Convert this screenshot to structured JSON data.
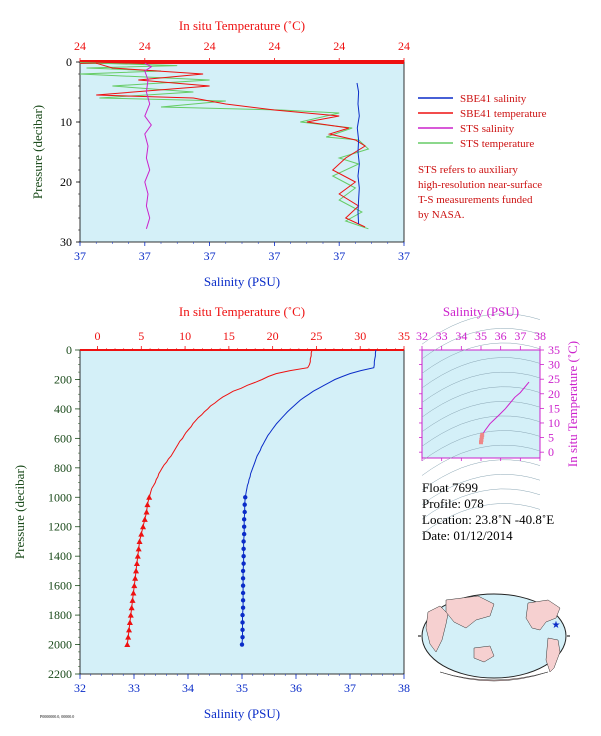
{
  "colors": {
    "plot_bg": "#d4f0f8",
    "temperature": "#ee1111",
    "salinity": "#0a2cc8",
    "sts_salinity": "#cc22cc",
    "sts_temperature": "#66cc66",
    "pressure_axis": "#1a4a1a",
    "ts_accent": "#cc22cc"
  },
  "chart_data": [
    {
      "id": "near_surface",
      "type": "line",
      "top_axis_label": "In situ Temperature (˚C)",
      "bottom_axis_label": "Salinity (PSU)",
      "left_axis_label": "Pressure (decibar)",
      "top_ticks": [
        "24",
        "24",
        "24",
        "24",
        "24",
        "24"
      ],
      "bottom_ticks": [
        "37",
        "37",
        "37",
        "37",
        "37",
        "37"
      ],
      "y_ticks": [
        "0",
        "10",
        "20",
        "30"
      ],
      "ylim": [
        0,
        30
      ],
      "xlim": [
        0,
        1
      ],
      "legend_position": "right",
      "legend": [
        {
          "label": "SBE41 salinity",
          "color": "#0a2cc8"
        },
        {
          "label": "SBE41 temperature",
          "color": "#ee1111"
        },
        {
          "label": "STS salinity",
          "color": "#cc22cc"
        },
        {
          "label": "STS temperature",
          "color": "#66cc66"
        }
      ],
      "note": [
        "STS refers to auxiliary",
        "high-resolution near-surface",
        "T-S measurements funded",
        "by NASA."
      ],
      "series": [
        {
          "name": "SBE41 salinity",
          "color": "#0a2cc8",
          "points": [
            [
              0.855,
              3.5
            ],
            [
              0.86,
              5
            ],
            [
              0.858,
              7
            ],
            [
              0.862,
              9
            ],
            [
              0.856,
              11
            ],
            [
              0.86,
              13
            ],
            [
              0.858,
              15
            ],
            [
              0.862,
              17
            ],
            [
              0.858,
              19
            ],
            [
              0.862,
              21
            ],
            [
              0.86,
              23
            ],
            [
              0.858,
              25
            ],
            [
              0.86,
              27
            ]
          ]
        },
        {
          "name": "SBE41 temperature",
          "color": "#ee1111",
          "points": [
            [
              0.05,
              0.2
            ],
            [
              0.1,
              1
            ],
            [
              0.38,
              2
            ],
            [
              0.18,
              3
            ],
            [
              0.4,
              4
            ],
            [
              0.05,
              5.5
            ],
            [
              0.35,
              6
            ],
            [
              0.45,
              7
            ],
            [
              0.6,
              8
            ],
            [
              0.8,
              9
            ],
            [
              0.7,
              10
            ],
            [
              0.83,
              11
            ],
            [
              0.77,
              12
            ],
            [
              0.85,
              13
            ],
            [
              0.88,
              14
            ],
            [
              0.82,
              16
            ],
            [
              0.78,
              18
            ],
            [
              0.85,
              20
            ],
            [
              0.8,
              22
            ],
            [
              0.86,
              24
            ],
            [
              0.82,
              26
            ],
            [
              0.88,
              27.5
            ]
          ]
        },
        {
          "name": "STS salinity",
          "color": "#cc22cc",
          "points": [
            [
              0.2,
              0.2
            ],
            [
              0.22,
              0.8
            ],
            [
              0.2,
              1.5
            ],
            [
              0.21,
              3
            ],
            [
              0.205,
              5
            ],
            [
              0.215,
              7
            ],
            [
              0.2,
              9
            ],
            [
              0.22,
              10.5
            ],
            [
              0.2,
              12
            ],
            [
              0.21,
              14
            ],
            [
              0.205,
              16
            ],
            [
              0.215,
              18
            ],
            [
              0.2,
              20
            ],
            [
              0.21,
              22
            ],
            [
              0.205,
              24
            ],
            [
              0.215,
              26
            ],
            [
              0.205,
              27.8
            ]
          ]
        },
        {
          "name": "STS temperature",
          "color": "#66cc66",
          "points": [
            [
              0.0,
              0.1
            ],
            [
              0.3,
              0.6
            ],
            [
              0.02,
              1
            ],
            [
              0.25,
              1.5
            ],
            [
              0.0,
              2
            ],
            [
              0.4,
              3
            ],
            [
              0.1,
              4
            ],
            [
              0.35,
              5
            ],
            [
              0.06,
              6
            ],
            [
              0.45,
              6.5
            ],
            [
              0.25,
              7.5
            ],
            [
              0.62,
              8
            ],
            [
              0.8,
              8.5
            ],
            [
              0.68,
              10
            ],
            [
              0.84,
              11
            ],
            [
              0.76,
              12.5
            ],
            [
              0.86,
              13
            ],
            [
              0.89,
              14.5
            ],
            [
              0.8,
              16
            ],
            [
              0.86,
              17
            ],
            [
              0.78,
              19
            ],
            [
              0.85,
              21
            ],
            [
              0.8,
              23
            ],
            [
              0.87,
              25
            ],
            [
              0.82,
              26.5
            ],
            [
              0.89,
              27.8
            ]
          ]
        }
      ]
    },
    {
      "id": "profile",
      "type": "line",
      "top_axis_label": "In situ Temperature (˚C)",
      "bottom_axis_label": "Salinity (PSU)",
      "left_axis_label": "Pressure (decibar)",
      "top_ticks": [
        "0",
        "5",
        "10",
        "15",
        "20",
        "25",
        "30",
        "35"
      ],
      "top_tick_values": [
        0,
        5,
        10,
        15,
        20,
        25,
        30,
        35
      ],
      "bottom_ticks": [
        "32",
        "33",
        "34",
        "35",
        "36",
        "37",
        "38"
      ],
      "bottom_tick_values": [
        32,
        33,
        34,
        35,
        36,
        37,
        38
      ],
      "y_ticks": [
        "0",
        "200",
        "400",
        "600",
        "800",
        "1000",
        "1200",
        "1400",
        "1600",
        "1800",
        "2000",
        "2200"
      ],
      "y_tick_values": [
        0,
        200,
        400,
        600,
        800,
        1000,
        1200,
        1400,
        1600,
        1800,
        2000,
        2200
      ],
      "temperature_xlim": [
        -2,
        35
      ],
      "salinity_xlim": [
        32,
        38
      ],
      "ylim": [
        2200,
        0
      ],
      "temperature": {
        "name": "Temperature",
        "pressure": [
          0,
          20,
          40,
          60,
          80,
          100,
          120,
          140,
          160,
          180,
          200,
          220,
          240,
          260,
          280,
          300,
          320,
          340,
          360,
          380,
          400,
          420,
          440,
          460,
          480,
          500,
          520,
          540,
          560,
          580,
          600,
          620,
          640,
          660,
          680,
          700,
          720,
          740,
          760,
          780,
          800,
          820,
          840,
          860,
          880,
          900,
          920,
          940,
          960,
          980,
          1000,
          1050,
          1100,
          1150,
          1200,
          1250,
          1300,
          1350,
          1400,
          1450,
          1500,
          1550,
          1600,
          1650,
          1700,
          1750,
          1800,
          1850,
          1900,
          1950,
          2000
        ],
        "values": [
          24.5,
          24.4,
          24.4,
          24.3,
          24.3,
          24.2,
          24.0,
          22.0,
          20.4,
          19.5,
          18.8,
          18.0,
          17.1,
          16.4,
          15.5,
          14.9,
          14.3,
          13.8,
          13.4,
          12.9,
          12.6,
          12.2,
          11.9,
          11.5,
          11.2,
          10.9,
          10.7,
          10.4,
          10.1,
          9.9,
          9.7,
          9.4,
          9.2,
          9.0,
          8.8,
          8.6,
          8.4,
          8.1,
          7.9,
          7.6,
          7.4,
          7.2,
          7.0,
          6.9,
          6.7,
          6.6,
          6.4,
          6.2,
          6.1,
          6.0,
          5.9,
          5.7,
          5.6,
          5.4,
          5.2,
          5.0,
          4.8,
          4.7,
          4.6,
          4.5,
          4.4,
          4.3,
          4.2,
          4.1,
          4.0,
          3.9,
          3.8,
          3.7,
          3.6,
          3.5,
          3.4
        ],
        "markers_pressure": [
          1000,
          1050,
          1100,
          1150,
          1200,
          1250,
          1300,
          1350,
          1400,
          1450,
          1500,
          1550,
          1600,
          1650,
          1700,
          1750,
          1800,
          1850,
          1900,
          1950,
          2000
        ],
        "markers_values": [
          5.9,
          5.7,
          5.6,
          5.4,
          5.2,
          5.0,
          4.8,
          4.7,
          4.6,
          4.5,
          4.4,
          4.3,
          4.2,
          4.1,
          4.0,
          3.9,
          3.8,
          3.7,
          3.6,
          3.5,
          3.4
        ]
      },
      "salinity": {
        "name": "Salinity",
        "pressure": [
          0,
          20,
          40,
          60,
          80,
          100,
          120,
          140,
          160,
          180,
          200,
          220,
          240,
          260,
          280,
          300,
          320,
          340,
          360,
          380,
          400,
          420,
          440,
          460,
          480,
          500,
          520,
          540,
          560,
          580,
          600,
          620,
          640,
          660,
          680,
          700,
          720,
          740,
          760,
          780,
          800,
          820,
          840,
          860,
          880,
          900,
          920,
          940,
          960,
          980,
          1000,
          1050,
          1100,
          1150,
          1200,
          1250,
          1300,
          1350,
          1400,
          1450,
          1500,
          1550,
          1600,
          1650,
          1700,
          1750,
          1800,
          1850,
          1900,
          1950,
          2000
        ],
        "values": [
          37.48,
          37.47,
          37.47,
          37.46,
          37.45,
          37.45,
          37.44,
          37.2,
          37.0,
          36.86,
          36.72,
          36.62,
          36.52,
          36.42,
          36.32,
          36.24,
          36.16,
          36.08,
          36.02,
          35.96,
          35.9,
          35.84,
          35.79,
          35.74,
          35.69,
          35.64,
          35.6,
          35.56,
          35.52,
          35.48,
          35.45,
          35.42,
          35.39,
          35.36,
          35.34,
          35.31,
          35.28,
          35.26,
          35.24,
          35.22,
          35.2,
          35.18,
          35.16,
          35.15,
          35.13,
          35.12,
          35.1,
          35.09,
          35.08,
          35.07,
          35.06,
          35.05,
          35.05,
          35.04,
          35.04,
          35.04,
          35.03,
          35.03,
          35.03,
          35.03,
          35.02,
          35.02,
          35.02,
          35.02,
          35.02,
          35.02,
          35.01,
          35.01,
          35.01,
          35.01,
          35.0
        ],
        "markers_pressure": [
          1000,
          1050,
          1100,
          1150,
          1200,
          1250,
          1300,
          1350,
          1400,
          1450,
          1500,
          1550,
          1600,
          1650,
          1700,
          1750,
          1800,
          1850,
          1900,
          1950,
          2000
        ],
        "markers_values": [
          35.06,
          35.05,
          35.05,
          35.04,
          35.04,
          35.04,
          35.03,
          35.03,
          35.03,
          35.03,
          35.02,
          35.02,
          35.02,
          35.02,
          35.02,
          35.02,
          35.01,
          35.01,
          35.01,
          35.01,
          35.0
        ]
      }
    },
    {
      "id": "ts_diagram",
      "type": "scatter",
      "top_axis_label": "Salinity (PSU)",
      "right_axis_label": "In situ Temperature (˚C)",
      "x_ticks": [
        "32",
        "33",
        "34",
        "35",
        "36",
        "37",
        "38"
      ],
      "x_tick_values": [
        32,
        33,
        34,
        35,
        36,
        37,
        38
      ],
      "y_ticks": [
        "0",
        "5",
        "10",
        "15",
        "20",
        "25",
        "30",
        "35"
      ],
      "y_tick_values": [
        0,
        5,
        10,
        15,
        20,
        25,
        30,
        35
      ],
      "xlim": [
        32,
        38
      ],
      "ylim": [
        -2,
        35
      ],
      "series": [
        {
          "name": "T-S",
          "color": "#cc22cc",
          "points": [
            [
              35.0,
              3.4
            ],
            [
              35.02,
              4.2
            ],
            [
              35.04,
              5.2
            ],
            [
              35.06,
              5.9
            ],
            [
              35.2,
              7.4
            ],
            [
              35.45,
              9.7
            ],
            [
              35.64,
              10.9
            ],
            [
              35.9,
              12.6
            ],
            [
              36.24,
              14.9
            ],
            [
              36.72,
              18.8
            ],
            [
              37.0,
              20.4
            ],
            [
              37.44,
              24.0
            ]
          ]
        }
      ]
    }
  ],
  "float_info": {
    "float": "Float  7699",
    "profile": "Profile:  078",
    "location": "Location:  23.8˚N  -40.8˚E",
    "date": "Date:  01/12/2014"
  },
  "map": {
    "label": "world-map",
    "marker_lat": 23.8,
    "marker_lon": -40.8
  },
  "footer_code": "P0000000.0, 00000.0"
}
